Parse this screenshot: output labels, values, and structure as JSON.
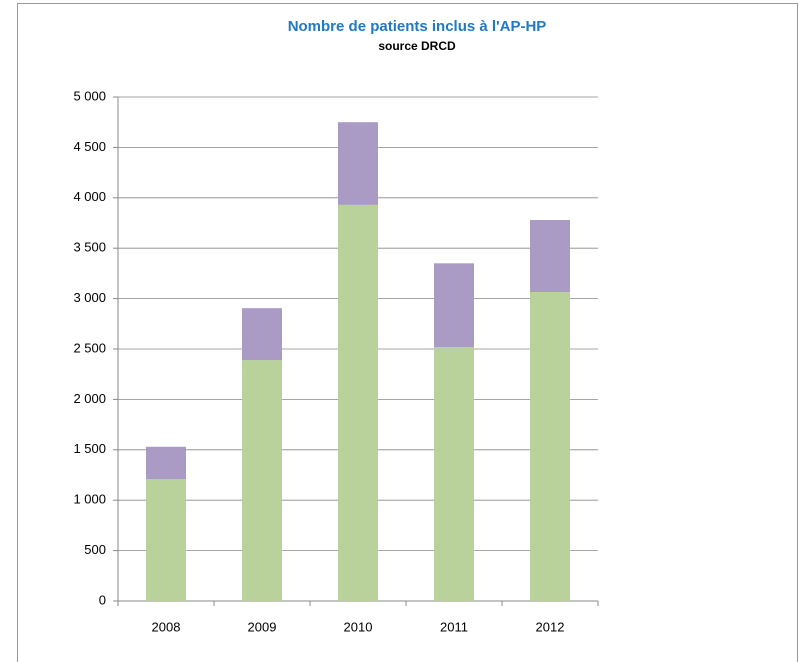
{
  "chart_data": {
    "type": "stacked_bar",
    "title": "Nombre de patients inclus à  l'AP-HP",
    "subtitle": "source DRCD",
    "categories": [
      "2008",
      "2009",
      "2010",
      "2011",
      "2012"
    ],
    "series": [
      {
        "color": "#b9d29b",
        "values": [
          1210,
          2390,
          3930,
          2520,
          3065
        ]
      },
      {
        "color": "#a99bc4",
        "values": [
          320,
          515,
          820,
          830,
          715
        ]
      }
    ],
    "ylim": [
      0,
      5000
    ],
    "yticks": [
      0,
      500,
      {
        "value": 1000,
        "label": "1 000"
      },
      {
        "value": 1500,
        "label": "1 500"
      },
      {
        "value": 2000,
        "label": "2 000"
      },
      {
        "value": 2500,
        "label": "2 500"
      },
      {
        "value": 3000,
        "label": "3 000"
      },
      {
        "value": 3500,
        "label": "3 500"
      },
      {
        "value": 4000,
        "label": "4 000"
      },
      {
        "value": 4500,
        "label": "4 500"
      },
      {
        "value": 5000,
        "label": "5 000"
      }
    ],
    "grid": true
  }
}
